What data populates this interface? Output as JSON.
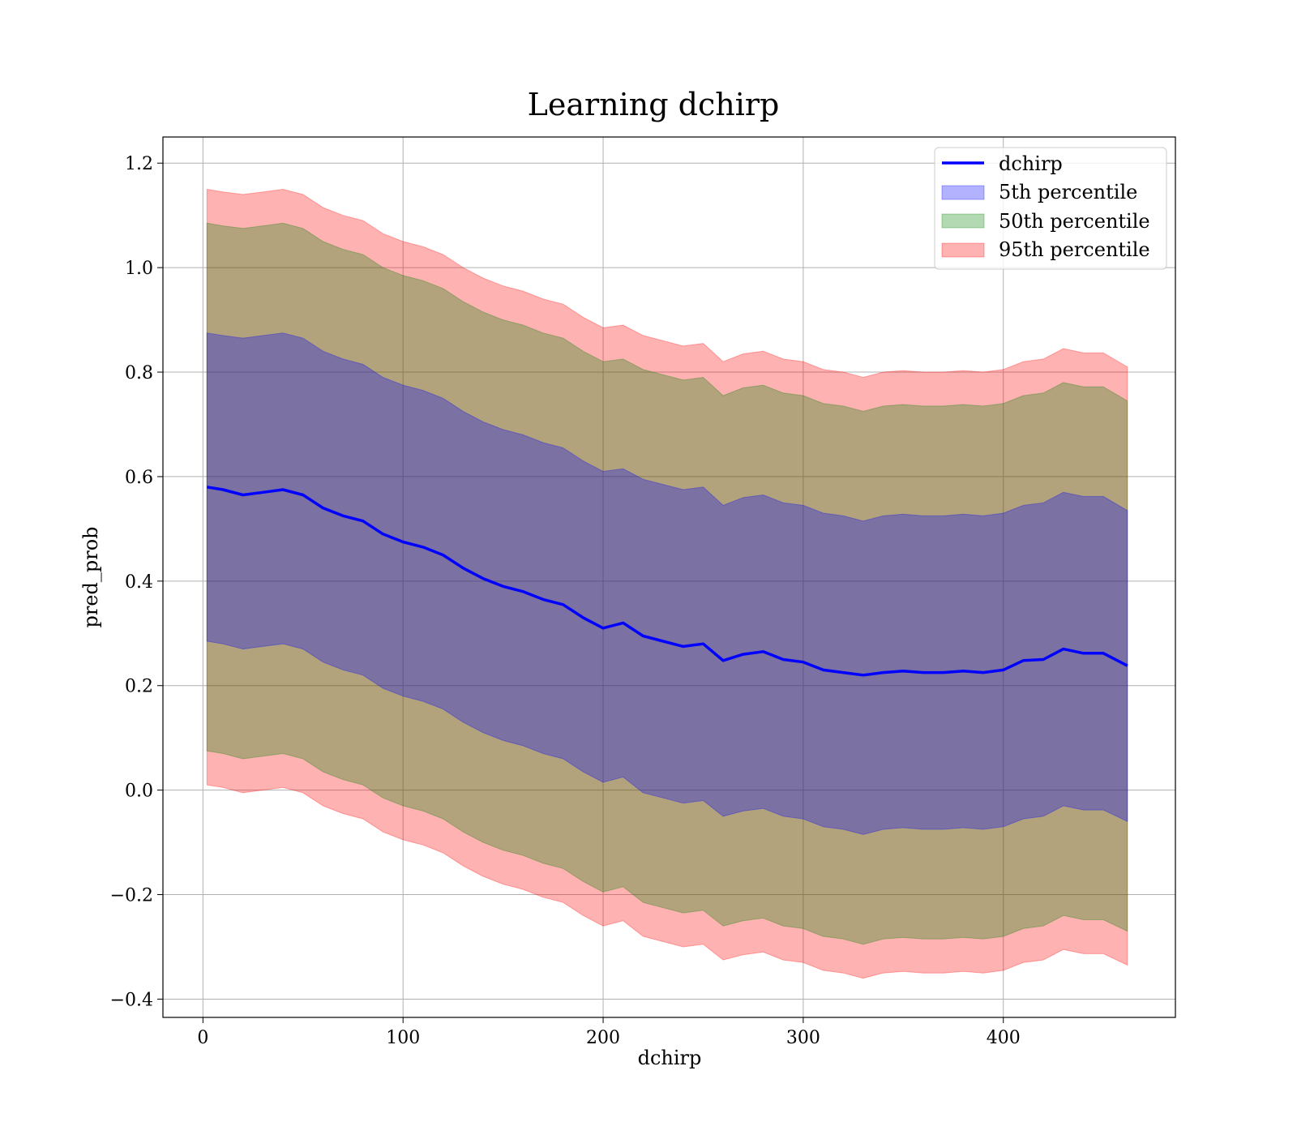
{
  "chart_data": {
    "type": "area",
    "title": "Learning dchirp",
    "xlabel": "dchirp",
    "ylabel": "pred_prob",
    "xlim": [
      -20,
      486
    ],
    "ylim": [
      -0.435,
      1.25
    ],
    "xticks": [
      0,
      100,
      200,
      300,
      400
    ],
    "xtick_labels": [
      "0",
      "100",
      "200",
      "300",
      "400"
    ],
    "yticks": [
      -0.4,
      -0.2,
      0.0,
      0.2,
      0.4,
      0.6,
      0.8,
      1.0,
      1.2
    ],
    "ytick_labels": [
      "−0.4",
      "−0.2",
      "0.0",
      "0.2",
      "0.4",
      "0.6",
      "0.8",
      "1.0",
      "1.2"
    ],
    "grid": true,
    "legend_position": "top-right",
    "legend": [
      "dchirp",
      "5th percentile",
      "50th percentile",
      "95th percentile"
    ],
    "colors": {
      "line": "#0000ff",
      "band_5": "#0000ff",
      "band_50": "#008000",
      "band_95": "#ff0000"
    },
    "x": [
      2,
      10,
      20,
      30,
      40,
      50,
      60,
      70,
      80,
      90,
      100,
      110,
      120,
      130,
      140,
      150,
      160,
      170,
      180,
      190,
      200,
      210,
      220,
      230,
      240,
      250,
      260,
      270,
      280,
      290,
      300,
      310,
      320,
      330,
      340,
      350,
      360,
      370,
      380,
      390,
      400,
      410,
      420,
      430,
      440,
      450,
      462
    ],
    "series": [
      {
        "name": "dchirp",
        "values": [
          0.58,
          0.575,
          0.565,
          0.57,
          0.575,
          0.565,
          0.54,
          0.525,
          0.515,
          0.49,
          0.475,
          0.465,
          0.45,
          0.425,
          0.405,
          0.39,
          0.38,
          0.365,
          0.355,
          0.33,
          0.31,
          0.32,
          0.295,
          0.285,
          0.275,
          0.28,
          0.248,
          0.26,
          0.265,
          0.25,
          0.245,
          0.23,
          0.225,
          0.22,
          0.225,
          0.228,
          0.225,
          0.225,
          0.228,
          0.225,
          0.23,
          0.248,
          0.25,
          0.27,
          0.262,
          0.262,
          0.238
        ]
      },
      {
        "name": "5th percentile",
        "upper": [
          0.875,
          0.87,
          0.865,
          0.87,
          0.875,
          0.865,
          0.84,
          0.825,
          0.815,
          0.79,
          0.775,
          0.765,
          0.75,
          0.725,
          0.705,
          0.69,
          0.68,
          0.665,
          0.655,
          0.63,
          0.61,
          0.615,
          0.595,
          0.585,
          0.575,
          0.58,
          0.545,
          0.56,
          0.565,
          0.55,
          0.545,
          0.53,
          0.525,
          0.515,
          0.525,
          0.528,
          0.525,
          0.525,
          0.528,
          0.525,
          0.53,
          0.545,
          0.55,
          0.57,
          0.562,
          0.562,
          0.535
        ],
        "lower": [
          0.285,
          0.28,
          0.27,
          0.275,
          0.28,
          0.27,
          0.245,
          0.23,
          0.22,
          0.195,
          0.18,
          0.17,
          0.155,
          0.13,
          0.11,
          0.095,
          0.085,
          0.07,
          0.06,
          0.035,
          0.015,
          0.025,
          -0.005,
          -0.015,
          -0.025,
          -0.02,
          -0.05,
          -0.04,
          -0.035,
          -0.05,
          -0.055,
          -0.07,
          -0.075,
          -0.085,
          -0.075,
          -0.072,
          -0.075,
          -0.075,
          -0.072,
          -0.075,
          -0.07,
          -0.055,
          -0.05,
          -0.03,
          -0.038,
          -0.038,
          -0.06
        ]
      },
      {
        "name": "50th percentile",
        "upper": [
          1.085,
          1.08,
          1.075,
          1.08,
          1.085,
          1.075,
          1.05,
          1.035,
          1.025,
          1.0,
          0.985,
          0.975,
          0.96,
          0.935,
          0.915,
          0.9,
          0.89,
          0.875,
          0.865,
          0.84,
          0.82,
          0.825,
          0.805,
          0.795,
          0.785,
          0.79,
          0.755,
          0.77,
          0.775,
          0.76,
          0.755,
          0.74,
          0.735,
          0.725,
          0.735,
          0.738,
          0.735,
          0.735,
          0.738,
          0.735,
          0.74,
          0.755,
          0.76,
          0.78,
          0.772,
          0.772,
          0.745
        ],
        "lower": [
          0.075,
          0.07,
          0.06,
          0.065,
          0.07,
          0.06,
          0.035,
          0.02,
          0.01,
          -0.015,
          -0.03,
          -0.04,
          -0.055,
          -0.08,
          -0.1,
          -0.115,
          -0.125,
          -0.14,
          -0.15,
          -0.175,
          -0.195,
          -0.185,
          -0.215,
          -0.225,
          -0.235,
          -0.23,
          -0.26,
          -0.25,
          -0.245,
          -0.26,
          -0.265,
          -0.28,
          -0.285,
          -0.295,
          -0.285,
          -0.282,
          -0.285,
          -0.285,
          -0.282,
          -0.285,
          -0.28,
          -0.265,
          -0.26,
          -0.24,
          -0.248,
          -0.248,
          -0.27
        ]
      },
      {
        "name": "95th percentile",
        "upper": [
          1.15,
          1.145,
          1.14,
          1.145,
          1.15,
          1.14,
          1.115,
          1.1,
          1.09,
          1.065,
          1.05,
          1.04,
          1.025,
          1.0,
          0.98,
          0.965,
          0.955,
          0.94,
          0.93,
          0.905,
          0.885,
          0.89,
          0.87,
          0.86,
          0.85,
          0.855,
          0.82,
          0.835,
          0.84,
          0.825,
          0.82,
          0.805,
          0.8,
          0.79,
          0.8,
          0.803,
          0.8,
          0.8,
          0.803,
          0.8,
          0.805,
          0.82,
          0.825,
          0.845,
          0.837,
          0.837,
          0.81
        ],
        "lower": [
          0.01,
          0.005,
          -0.005,
          0.0,
          0.005,
          -0.005,
          -0.03,
          -0.045,
          -0.055,
          -0.08,
          -0.095,
          -0.105,
          -0.12,
          -0.145,
          -0.165,
          -0.18,
          -0.19,
          -0.205,
          -0.215,
          -0.24,
          -0.26,
          -0.25,
          -0.28,
          -0.29,
          -0.3,
          -0.295,
          -0.325,
          -0.315,
          -0.31,
          -0.325,
          -0.33,
          -0.345,
          -0.35,
          -0.36,
          -0.35,
          -0.347,
          -0.35,
          -0.35,
          -0.347,
          -0.35,
          -0.345,
          -0.33,
          -0.325,
          -0.305,
          -0.313,
          -0.313,
          -0.335
        ]
      }
    ]
  }
}
